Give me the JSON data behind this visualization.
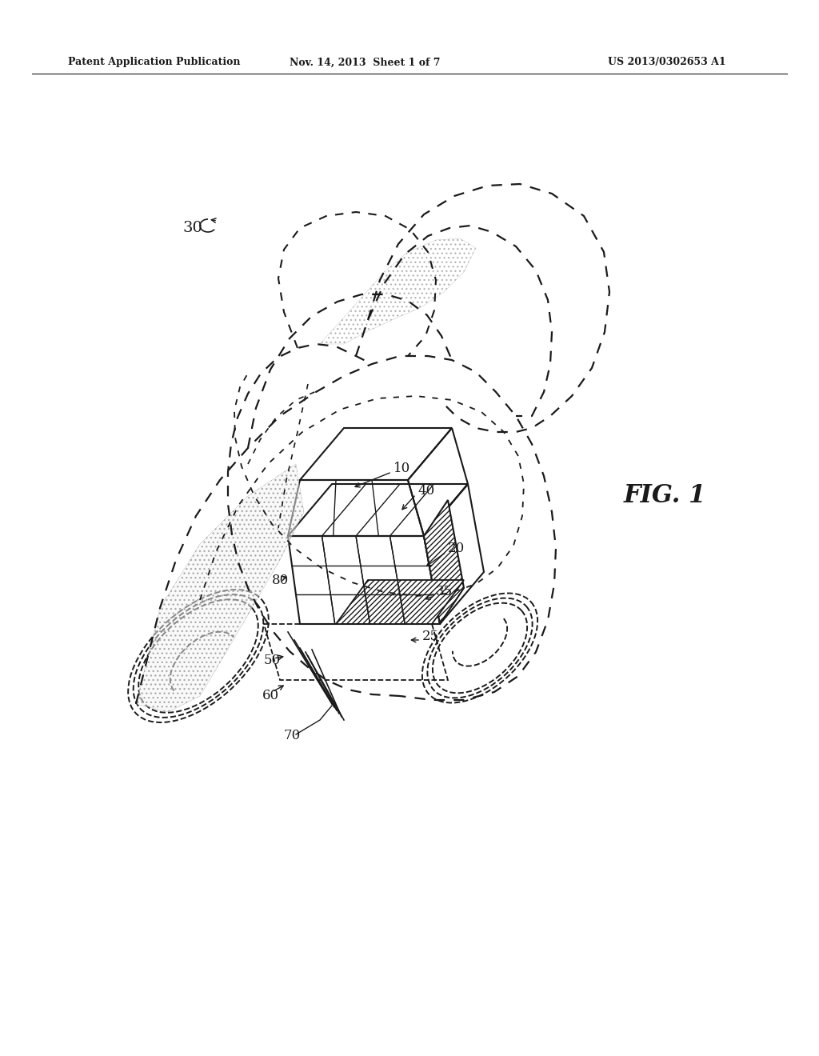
{
  "background_color": "#ffffff",
  "header_left": "Patent Application Publication",
  "header_center": "Nov. 14, 2013  Sheet 1 of 7",
  "header_right": "US 2013/0302653 A1",
  "fig_label": "FIG. 1",
  "ref_label": "30",
  "ref_numbers": [
    "10",
    "40",
    "20",
    "35",
    "25",
    "50",
    "60",
    "70",
    "80"
  ],
  "title_color": "#1a1a1a",
  "line_color": "#1a1a1a"
}
